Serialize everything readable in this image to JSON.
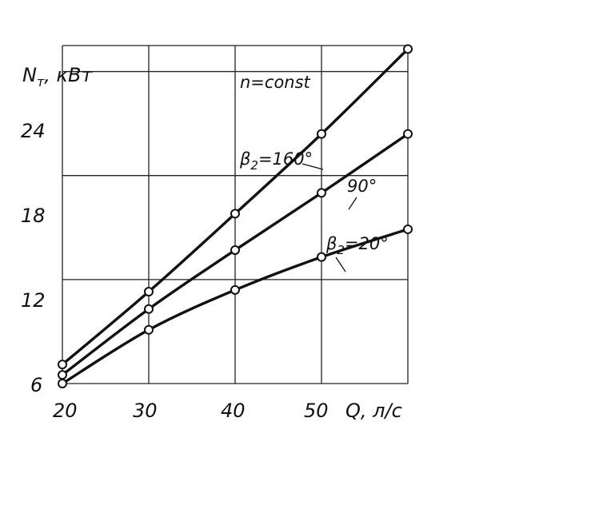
{
  "chart_data": {
    "type": "line",
    "x": [
      20,
      30,
      40,
      50,
      60
    ],
    "xlim": [
      20,
      60
    ],
    "ylim": [
      6,
      25.5
    ],
    "x_ticks": [
      20,
      30,
      40,
      50
    ],
    "y_ticks": [
      6,
      12,
      18,
      24
    ],
    "x_tick_labels": [
      "20",
      "30",
      "40",
      "50"
    ],
    "y_tick_labels": [
      "6",
      "12",
      "18",
      "24"
    ],
    "xlabel": "Q, л/с",
    "ylabel_symbol": "N",
    "ylabel_subscript": "т",
    "ylabel_unit": ", кВт",
    "annotation": "n=const",
    "grid": true,
    "series": [
      {
        "label_beta": "β",
        "label_sub": "2",
        "label_value": "=160°",
        "values": [
          7.1,
          11.3,
          15.8,
          20.4,
          25.3
        ]
      },
      {
        "label_value": "90°",
        "values": [
          6.5,
          10.3,
          13.7,
          17.0,
          20.4
        ]
      },
      {
        "label_beta": "β",
        "label_sub": "2",
        "label_value": "=20°",
        "values": [
          6.0,
          9.1,
          11.4,
          13.3,
          14.9
        ]
      }
    ]
  }
}
